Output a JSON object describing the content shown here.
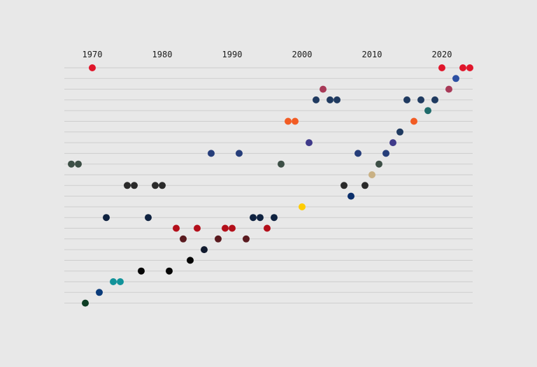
{
  "chart_data": {
    "type": "scatter",
    "title": "",
    "xlabel": "",
    "ylabel": "",
    "xlim": [
      1966,
      2024
    ],
    "x_ticks": [
      "1970",
      "1980",
      "1990",
      "2000",
      "2010",
      "2020"
    ],
    "row_count": 23,
    "grid": true,
    "legend": "none",
    "points": [
      {
        "x": 1970,
        "row": 1,
        "color": "#e0162b"
      },
      {
        "x": 2020,
        "row": 1,
        "color": "#e0162b"
      },
      {
        "x": 2023,
        "row": 1,
        "color": "#e0162b"
      },
      {
        "x": 2024,
        "row": 1,
        "color": "#e0162b"
      },
      {
        "x": 2022,
        "row": 2,
        "color": "#2b4fa2"
      },
      {
        "x": 2003,
        "row": 3,
        "color": "#a83a58"
      },
      {
        "x": 2021,
        "row": 3,
        "color": "#a83a58"
      },
      {
        "x": 2002,
        "row": 4,
        "color": "#1f3a60"
      },
      {
        "x": 2004,
        "row": 4,
        "color": "#1f3a60"
      },
      {
        "x": 2005,
        "row": 4,
        "color": "#1f3a60"
      },
      {
        "x": 2015,
        "row": 4,
        "color": "#1f3a60"
      },
      {
        "x": 2017,
        "row": 4,
        "color": "#1f3a60"
      },
      {
        "x": 2019,
        "row": 4,
        "color": "#1f3a60"
      },
      {
        "x": 2018,
        "row": 5,
        "color": "#1f6b6b"
      },
      {
        "x": 1998,
        "row": 6,
        "color": "#f25c24"
      },
      {
        "x": 1999,
        "row": 6,
        "color": "#f25c24"
      },
      {
        "x": 2016,
        "row": 6,
        "color": "#f25c24"
      },
      {
        "x": 2014,
        "row": 7,
        "color": "#1f3a60"
      },
      {
        "x": 2001,
        "row": 8,
        "color": "#3f3a8a"
      },
      {
        "x": 2013,
        "row": 8,
        "color": "#3f3a8a"
      },
      {
        "x": 1987,
        "row": 9,
        "color": "#263e7a"
      },
      {
        "x": 1991,
        "row": 9,
        "color": "#263e7a"
      },
      {
        "x": 2008,
        "row": 9,
        "color": "#263e7a"
      },
      {
        "x": 2012,
        "row": 9,
        "color": "#263e7a"
      },
      {
        "x": 1967,
        "row": 10,
        "color": "#3d4f46"
      },
      {
        "x": 1968,
        "row": 10,
        "color": "#3d4f46"
      },
      {
        "x": 1997,
        "row": 10,
        "color": "#3d4f46"
      },
      {
        "x": 2011,
        "row": 10,
        "color": "#3d4f46"
      },
      {
        "x": 2010,
        "row": 11,
        "color": "#c9b184"
      },
      {
        "x": 1975,
        "row": 12,
        "color": "#2a2a2a"
      },
      {
        "x": 1976,
        "row": 12,
        "color": "#2a2a2a"
      },
      {
        "x": 1979,
        "row": 12,
        "color": "#2a2a2a"
      },
      {
        "x": 1980,
        "row": 12,
        "color": "#2a2a2a"
      },
      {
        "x": 2006,
        "row": 12,
        "color": "#2a2a2a"
      },
      {
        "x": 2009,
        "row": 12,
        "color": "#2a2a2a"
      },
      {
        "x": 2007,
        "row": 13,
        "color": "#0b2f6b"
      },
      {
        "x": 2000,
        "row": 14,
        "color": "#ffcc00"
      },
      {
        "x": 1972,
        "row": 15,
        "color": "#0f2240"
      },
      {
        "x": 1978,
        "row": 15,
        "color": "#0f2240"
      },
      {
        "x": 1993,
        "row": 15,
        "color": "#0f2240"
      },
      {
        "x": 1994,
        "row": 15,
        "color": "#0f2240"
      },
      {
        "x": 1996,
        "row": 15,
        "color": "#0f2240"
      },
      {
        "x": 1982,
        "row": 16,
        "color": "#b30f1a"
      },
      {
        "x": 1985,
        "row": 16,
        "color": "#b30f1a"
      },
      {
        "x": 1989,
        "row": 16,
        "color": "#b30f1a"
      },
      {
        "x": 1990,
        "row": 16,
        "color": "#b30f1a"
      },
      {
        "x": 1995,
        "row": 16,
        "color": "#b30f1a"
      },
      {
        "x": 1983,
        "row": 17,
        "color": "#5a1a1f"
      },
      {
        "x": 1988,
        "row": 17,
        "color": "#5a1a1f"
      },
      {
        "x": 1992,
        "row": 17,
        "color": "#5a1a1f"
      },
      {
        "x": 1986,
        "row": 18,
        "color": "#111a2e"
      },
      {
        "x": 1984,
        "row": 19,
        "color": "#050505"
      },
      {
        "x": 1977,
        "row": 20,
        "color": "#050505"
      },
      {
        "x": 1981,
        "row": 20,
        "color": "#050505"
      },
      {
        "x": 1973,
        "row": 21,
        "color": "#12939a"
      },
      {
        "x": 1974,
        "row": 21,
        "color": "#12939a"
      },
      {
        "x": 1971,
        "row": 22,
        "color": "#0a3b7a"
      },
      {
        "x": 1969,
        "row": 23,
        "color": "#0d3d24"
      }
    ]
  }
}
